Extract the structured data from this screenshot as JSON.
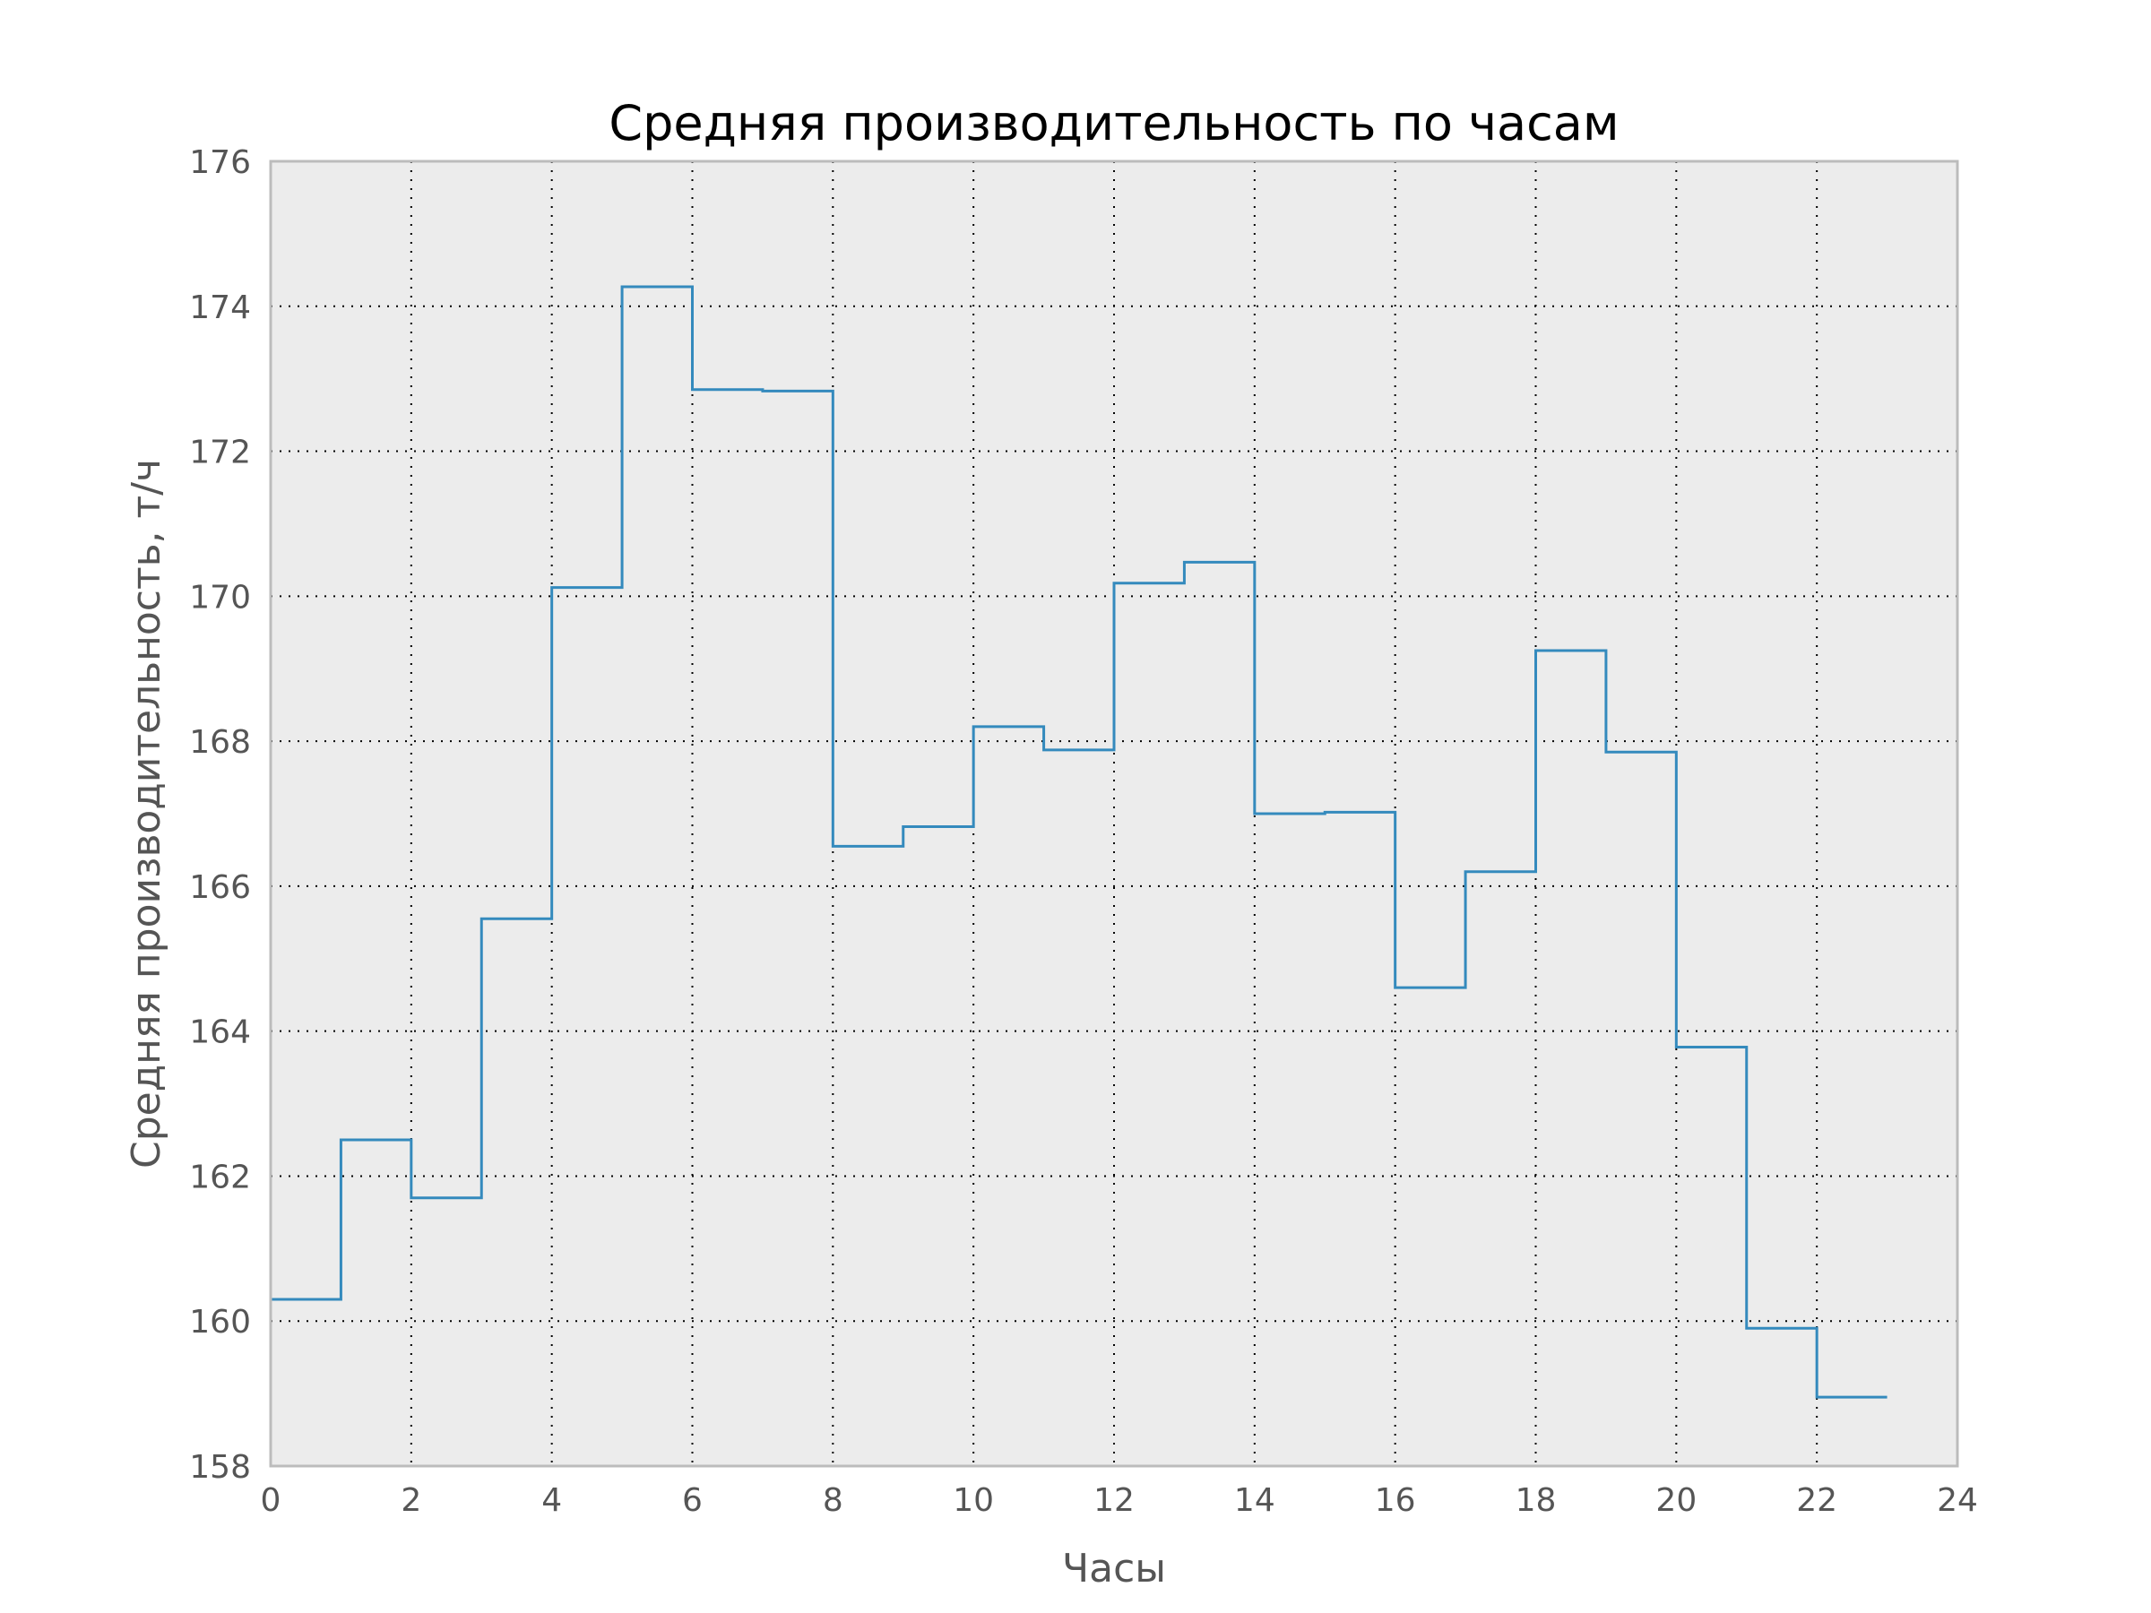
{
  "chart_data": {
    "type": "line",
    "drawstyle": "steps-post",
    "title": "Средняя производительность по часам",
    "xlabel": "Часы",
    "ylabel": "Средняя производительность, т/ч",
    "xlim": [
      0,
      24
    ],
    "ylim": [
      158,
      176
    ],
    "xticks": [
      0,
      2,
      4,
      6,
      8,
      10,
      12,
      14,
      16,
      18,
      20,
      22,
      24
    ],
    "yticks": [
      158,
      160,
      162,
      164,
      166,
      168,
      170,
      172,
      174,
      176
    ],
    "grid": true,
    "legend": false,
    "line_color": "#348abd",
    "background_color": "#ececec",
    "series": [
      {
        "x": [
          0,
          1,
          2,
          3,
          4,
          5,
          6,
          7,
          8,
          9,
          10,
          11,
          12,
          13,
          14,
          15,
          16,
          17,
          18,
          19,
          20,
          21,
          22,
          23
        ],
        "values": [
          160.3,
          162.5,
          161.7,
          165.55,
          170.12,
          174.27,
          172.85,
          172.83,
          166.55,
          166.82,
          168.2,
          167.88,
          170.18,
          170.47,
          167.0,
          167.02,
          164.6,
          166.2,
          169.25,
          167.85,
          163.78,
          159.9,
          158.95,
          158.95
        ]
      }
    ]
  }
}
